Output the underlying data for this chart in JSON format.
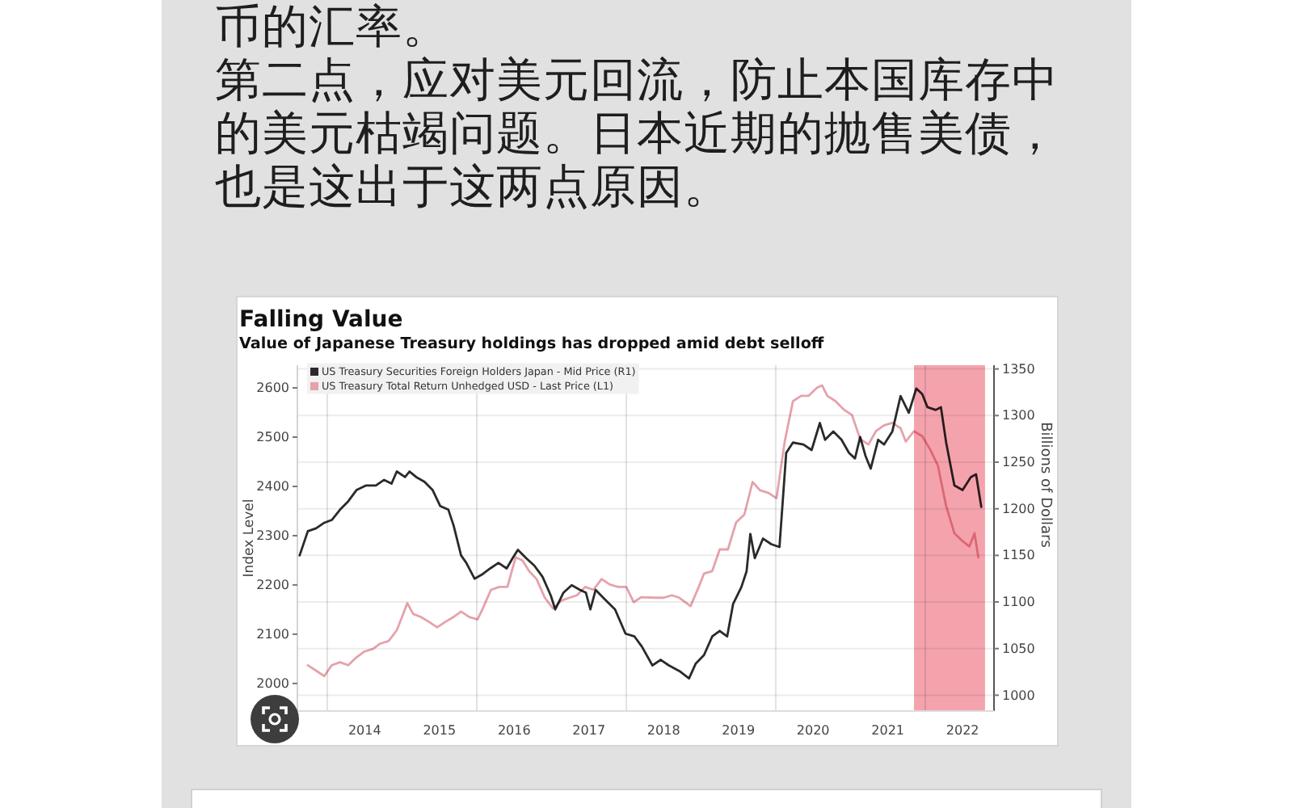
{
  "chart_data": {
    "type": "line",
    "title": "Falling Value",
    "subtitle": "Value of Japanese Treasury holdings has dropped amid debt selloff",
    "ylabel": "Index Level",
    "y2label": "Billions of Dollars",
    "annotations": [
      "币的汇率。",
      "第二点，应对美元回流，防止本国库存中的美元枯竭问题。日本近期的抛售美债，也是这出于这两点原因。"
    ],
    "xlim": [
      2013.6,
      2022.92
    ],
    "xticks": [
      {
        "value": 2014,
        "label": null
      },
      {
        "value": 2014.5,
        "label": "2014"
      },
      {
        "value": 2015.5,
        "label": "2015"
      },
      {
        "value": 2016,
        "label": null
      },
      {
        "value": 2016.5,
        "label": "2016"
      },
      {
        "value": 2017.5,
        "label": "2017"
      },
      {
        "value": 2018,
        "label": null
      },
      {
        "value": 2018.5,
        "label": "2018"
      },
      {
        "value": 2019.5,
        "label": "2019"
      },
      {
        "value": 2020,
        "label": null
      },
      {
        "value": 2020.5,
        "label": "2020"
      },
      {
        "value": 2021.5,
        "label": "2021"
      },
      {
        "value": 2022,
        "label": null
      },
      {
        "value": 2022.5,
        "label": "2022"
      }
    ],
    "ylim": [
      1944,
      2646
    ],
    "yticks": [
      2000,
      2100,
      2200,
      2300,
      2400,
      2500,
      2600
    ],
    "y2lim": [
      983,
      1354
    ],
    "y2ticks": [
      1000,
      1050,
      1100,
      1150,
      1200,
      1250,
      1300,
      1350
    ],
    "grid": true,
    "legend": "top left",
    "bands": [
      {
        "axis": "x",
        "from": 2021.85,
        "to": 2022.8,
        "color": "#f4a3ad"
      }
    ],
    "series": [
      {
        "name": "US Treasury Securities Foreign Holders Japan - Mid Price (R1)",
        "color": "#2a2a2a",
        "axis": "y2",
        "x": [
          2013.63,
          2013.74,
          2013.85,
          2013.96,
          2014.06,
          2014.17,
          2014.28,
          2014.39,
          2014.52,
          2014.65,
          2014.76,
          2014.86,
          2014.93,
          2015.04,
          2015.1,
          2015.19,
          2015.3,
          2015.41,
          2015.51,
          2015.62,
          2015.69,
          2015.79,
          2015.86,
          2015.97,
          2016.08,
          2016.18,
          2016.29,
          2016.4,
          2016.48,
          2016.55,
          2016.66,
          2016.77,
          2016.88,
          2016.99,
          2017.05,
          2017.16,
          2017.27,
          2017.38,
          2017.46,
          2017.52,
          2017.59,
          2017.7,
          2017.85,
          2017.99,
          2018.11,
          2018.21,
          2018.35,
          2018.46,
          2018.57,
          2018.71,
          2018.84,
          2018.93,
          2019.04,
          2019.15,
          2019.25,
          2019.35,
          2019.43,
          2019.54,
          2019.61,
          2019.66,
          2019.72,
          2019.83,
          2019.94,
          2020.05,
          2020.14,
          2020.23,
          2020.37,
          2020.48,
          2020.59,
          2020.66,
          2020.77,
          2020.88,
          2020.98,
          2021.06,
          2021.13,
          2021.2,
          2021.27,
          2021.37,
          2021.45,
          2021.56,
          2021.67,
          2021.78,
          2021.88,
          2021.96,
          2022.03,
          2022.14,
          2022.21,
          2022.28,
          2022.39,
          2022.5,
          2022.61,
          2022.68,
          2022.75
        ],
        "values": [
          1150,
          1176,
          1179,
          1185,
          1188,
          1199,
          1208,
          1220,
          1225,
          1225,
          1231,
          1227,
          1240,
          1234,
          1240,
          1234,
          1229,
          1220,
          1203,
          1199,
          1182,
          1150,
          1142,
          1125,
          1130,
          1136,
          1142,
          1136,
          1147,
          1156,
          1147,
          1139,
          1127,
          1107,
          1092,
          1110,
          1118,
          1113,
          1110,
          1092,
          1113,
          1104,
          1092,
          1066,
          1063,
          1052,
          1032,
          1038,
          1032,
          1026,
          1018,
          1034,
          1043,
          1063,
          1069,
          1063,
          1098,
          1116,
          1133,
          1173,
          1147,
          1168,
          1162,
          1159,
          1260,
          1271,
          1269,
          1263,
          1292,
          1274,
          1283,
          1274,
          1260,
          1254,
          1277,
          1257,
          1243,
          1274,
          1269,
          1283,
          1321,
          1303,
          1329,
          1323,
          1309,
          1306,
          1309,
          1271,
          1225,
          1220,
          1234,
          1237,
          1202
        ]
      },
      {
        "name": "US Treasury Total Return Unhedged USD - Last Price (L1)",
        "color": "#e5a2aa",
        "x": [
          2013.74,
          2013.85,
          2013.96,
          2014.06,
          2014.17,
          2014.28,
          2014.39,
          2014.5,
          2014.61,
          2014.71,
          2014.82,
          2014.93,
          2015,
          2015.07,
          2015.15,
          2015.25,
          2015.36,
          2015.47,
          2015.58,
          2015.69,
          2015.79,
          2015.9,
          2016.01,
          2016.08,
          2016.19,
          2016.3,
          2016.41,
          2016.52,
          2016.61,
          2016.7,
          2016.8,
          2016.91,
          2017.02,
          2017.13,
          2017.24,
          2017.34,
          2017.45,
          2017.56,
          2017.67,
          2017.78,
          2017.89,
          2018,
          2018.1,
          2018.2,
          2018.39,
          2018.5,
          2018.61,
          2018.71,
          2018.86,
          2018.97,
          2019.04,
          2019.15,
          2019.25,
          2019.36,
          2019.47,
          2019.58,
          2019.69,
          2019.79,
          2019.9,
          2020.01,
          2020.12,
          2020.23,
          2020.34,
          2020.44,
          2020.55,
          2020.62,
          2020.69,
          2020.8,
          2020.91,
          2021.02,
          2021.13,
          2021.24,
          2021.34,
          2021.45,
          2021.56,
          2021.67,
          2021.74,
          2021.85,
          2021.96,
          2022.07,
          2022.17,
          2022.28,
          2022.39,
          2022.5,
          2022.59,
          2022.66,
          2022.71
        ],
        "values": [
          2037,
          2026,
          2015,
          2037,
          2043,
          2037,
          2053,
          2065,
          2070,
          2081,
          2086,
          2108,
          2135,
          2163,
          2141,
          2135,
          2125,
          2114,
          2125,
          2135,
          2146,
          2135,
          2130,
          2152,
          2190,
          2196,
          2196,
          2256,
          2250,
          2228,
          2212,
          2174,
          2152,
          2168,
          2174,
          2179,
          2196,
          2190,
          2212,
          2201,
          2196,
          2196,
          2165,
          2175,
          2174,
          2174,
          2179,
          2174,
          2157,
          2196,
          2223,
          2228,
          2272,
          2272,
          2327,
          2343,
          2409,
          2392,
          2387,
          2376,
          2491,
          2573,
          2584,
          2584,
          2600,
          2605,
          2584,
          2573,
          2556,
          2545,
          2496,
          2485,
          2512,
          2524,
          2529,
          2518,
          2491,
          2512,
          2502,
          2474,
          2442,
          2360,
          2305,
          2289,
          2278,
          2305,
          2256
        ]
      }
    ]
  }
}
